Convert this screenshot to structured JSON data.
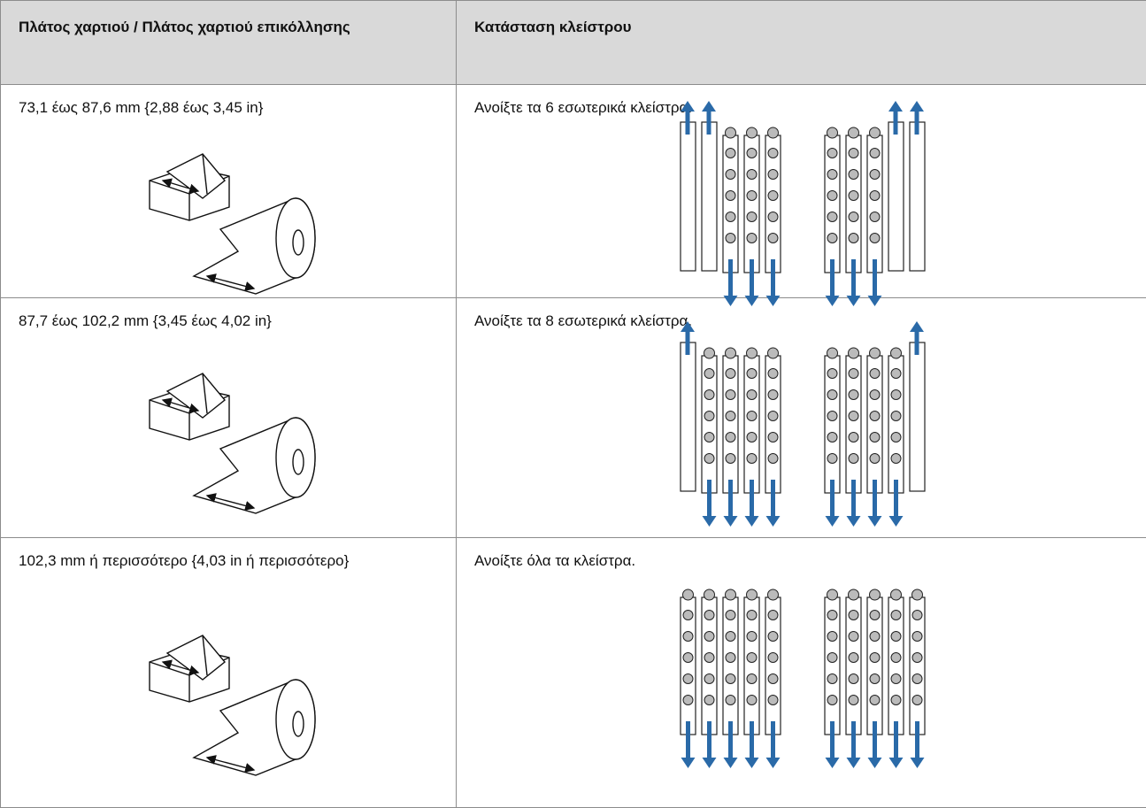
{
  "table": {
    "headers": [
      "Πλάτος χαρτιού / Πλάτος χαρτιού επικόλλησης",
      "Κατάσταση κλείστρου"
    ],
    "rows": [
      [
        "73,1 έως 87,6 mm {2,88 έως 3,45 in}",
        "Ανοίξτε τα 6 εσωτερικά κλείστρα."
      ],
      [
        "87,7 έως 102,2 mm {3,45 έως 4,02 in}",
        "Ανοίξτε τα 8 εσωτερικά κλείστρα."
      ],
      [
        "102,3 mm ή περισσότερο {4,03 in ή περισσότερο}",
        "Ανοίξτε όλα τα κλείστρα."
      ]
    ]
  }
}
